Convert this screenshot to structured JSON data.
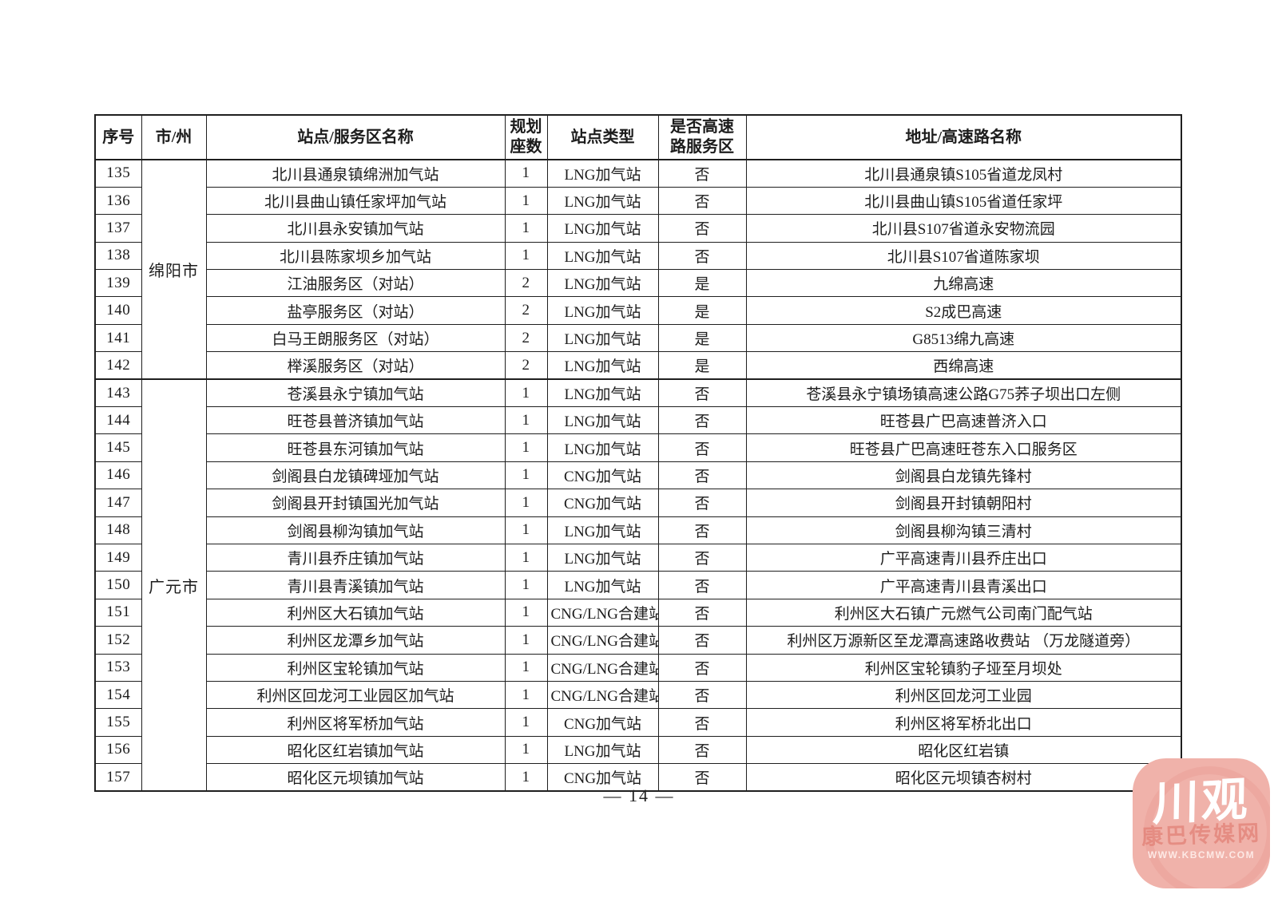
{
  "table": {
    "headers": [
      "序号",
      "市/州",
      "站点/服务区名称",
      "规划\n座数",
      "站点类型",
      "是否高速\n路服务区",
      "地址/高速路名称"
    ],
    "groups": [
      {
        "city": "绵阳市",
        "rows": [
          {
            "no": "135",
            "name": "北川县通泉镇绵洲加气站",
            "count": "1",
            "type": "LNG加气站",
            "highway": "否",
            "address": "北川县通泉镇S105省道龙凤村"
          },
          {
            "no": "136",
            "name": "北川县曲山镇任家坪加气站",
            "count": "1",
            "type": "LNG加气站",
            "highway": "否",
            "address": "北川县曲山镇S105省道任家坪"
          },
          {
            "no": "137",
            "name": "北川县永安镇加气站",
            "count": "1",
            "type": "LNG加气站",
            "highway": "否",
            "address": "北川县S107省道永安物流园"
          },
          {
            "no": "138",
            "name": "北川县陈家坝乡加气站",
            "count": "1",
            "type": "LNG加气站",
            "highway": "否",
            "address": "北川县S107省道陈家坝"
          },
          {
            "no": "139",
            "name": "江油服务区（对站）",
            "count": "2",
            "type": "LNG加气站",
            "highway": "是",
            "address": "九绵高速"
          },
          {
            "no": "140",
            "name": "盐亭服务区（对站）",
            "count": "2",
            "type": "LNG加气站",
            "highway": "是",
            "address": "S2成巴高速"
          },
          {
            "no": "141",
            "name": "白马王朗服务区（对站）",
            "count": "2",
            "type": "LNG加气站",
            "highway": "是",
            "address": "G8513绵九高速"
          },
          {
            "no": "142",
            "name": "榉溪服务区（对站）",
            "count": "2",
            "type": "LNG加气站",
            "highway": "是",
            "address": "西绵高速"
          }
        ]
      },
      {
        "city": "广元市",
        "rows": [
          {
            "no": "143",
            "name": "苍溪县永宁镇加气站",
            "count": "1",
            "type": "LNG加气站",
            "highway": "否",
            "address": "苍溪县永宁镇场镇高速公路G75荞子坝出口左侧"
          },
          {
            "no": "144",
            "name": "旺苍县普济镇加气站",
            "count": "1",
            "type": "LNG加气站",
            "highway": "否",
            "address": "旺苍县广巴高速普济入口"
          },
          {
            "no": "145",
            "name": "旺苍县东河镇加气站",
            "count": "1",
            "type": "LNG加气站",
            "highway": "否",
            "address": "旺苍县广巴高速旺苍东入口服务区"
          },
          {
            "no": "146",
            "name": "剑阁县白龙镇碑垭加气站",
            "count": "1",
            "type": "CNG加气站",
            "highway": "否",
            "address": "剑阁县白龙镇先锋村"
          },
          {
            "no": "147",
            "name": "剑阁县开封镇国光加气站",
            "count": "1",
            "type": "CNG加气站",
            "highway": "否",
            "address": "剑阁县开封镇朝阳村"
          },
          {
            "no": "148",
            "name": "剑阁县柳沟镇加气站",
            "count": "1",
            "type": "LNG加气站",
            "highway": "否",
            "address": "剑阁县柳沟镇三清村"
          },
          {
            "no": "149",
            "name": "青川县乔庄镇加气站",
            "count": "1",
            "type": "LNG加气站",
            "highway": "否",
            "address": "广平高速青川县乔庄出口"
          },
          {
            "no": "150",
            "name": "青川县青溪镇加气站",
            "count": "1",
            "type": "LNG加气站",
            "highway": "否",
            "address": "广平高速青川县青溪出口"
          },
          {
            "no": "151",
            "name": "利州区大石镇加气站",
            "count": "1",
            "type": "CNG/LNG合建站",
            "highway": "否",
            "address": "利州区大石镇广元燃气公司南门配气站"
          },
          {
            "no": "152",
            "name": "利州区龙潭乡加气站",
            "count": "1",
            "type": "CNG/LNG合建站",
            "highway": "否",
            "address": "利州区万源新区至龙潭高速路收费站 （万龙隧道旁）"
          },
          {
            "no": "153",
            "name": "利州区宝轮镇加气站",
            "count": "1",
            "type": "CNG/LNG合建站",
            "highway": "否",
            "address": "利州区宝轮镇豹子垭至月坝处"
          },
          {
            "no": "154",
            "name": "利州区回龙河工业园区加气站",
            "count": "1",
            "type": "CNG/LNG合建站",
            "highway": "否",
            "address": "利州区回龙河工业园"
          },
          {
            "no": "155",
            "name": "利州区将军桥加气站",
            "count": "1",
            "type": "CNG加气站",
            "highway": "否",
            "address": "利州区将军桥北出口"
          },
          {
            "no": "156",
            "name": "昭化区红岩镇加气站",
            "count": "1",
            "type": "LNG加气站",
            "highway": "否",
            "address": "昭化区红岩镇"
          },
          {
            "no": "157",
            "name": "昭化区元坝镇加气站",
            "count": "1",
            "type": "CNG加气站",
            "highway": "否",
            "address": "昭化区元坝镇杏树村"
          }
        ]
      }
    ]
  },
  "footer": {
    "page_number": "— 14 —"
  },
  "watermark": {
    "title": "川观",
    "subtitle": "康巴传媒网",
    "url": "WWW.KBCMW.COM",
    "bg_color": "#f0b2aa"
  }
}
